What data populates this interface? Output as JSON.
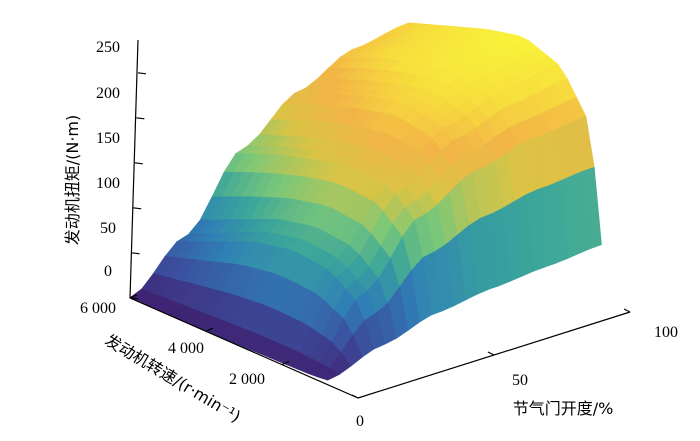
{
  "chart_data": {
    "type": "surface3d",
    "title": "",
    "zlabel": "发动机扭矩/(N·m)",
    "ylabel": "发动机转速/(r·min⁻¹)",
    "xlabel": "节气门开度/%",
    "z_ticks": [
      "0",
      "50",
      "100",
      "150",
      "200",
      "250"
    ],
    "y_ticks": [
      "6 000",
      "4 000",
      "2 000"
    ],
    "x_ticks": [
      "0",
      "50",
      "100"
    ],
    "xlim": [
      0,
      100
    ],
    "ylim": [
      800,
      6000
    ],
    "zlim": [
      0,
      250
    ],
    "colormap": [
      "#3f1f6e",
      "#3b4f9e",
      "#2f7fb6",
      "#3aa59b",
      "#7cc878",
      "#d9c445",
      "#f2b447",
      "#f7dd3d",
      "#f9f33a"
    ],
    "throttle": [
      0,
      20,
      40,
      60,
      80,
      100
    ],
    "speed": [
      800,
      1200,
      2000,
      3000,
      4000,
      5000,
      6000
    ],
    "torque": [
      [
        5,
        3,
        2,
        1,
        0,
        0,
        0
      ],
      [
        25,
        70,
        95,
        100,
        90,
        70,
        50
      ],
      [
        42,
        135,
        165,
        168,
        158,
        145,
        128
      ],
      [
        50,
        165,
        205,
        215,
        205,
        190,
        172
      ],
      [
        55,
        180,
        225,
        240,
        230,
        218,
        200
      ],
      [
        60,
        185,
        235,
        250,
        240,
        225,
        210
      ]
    ]
  }
}
